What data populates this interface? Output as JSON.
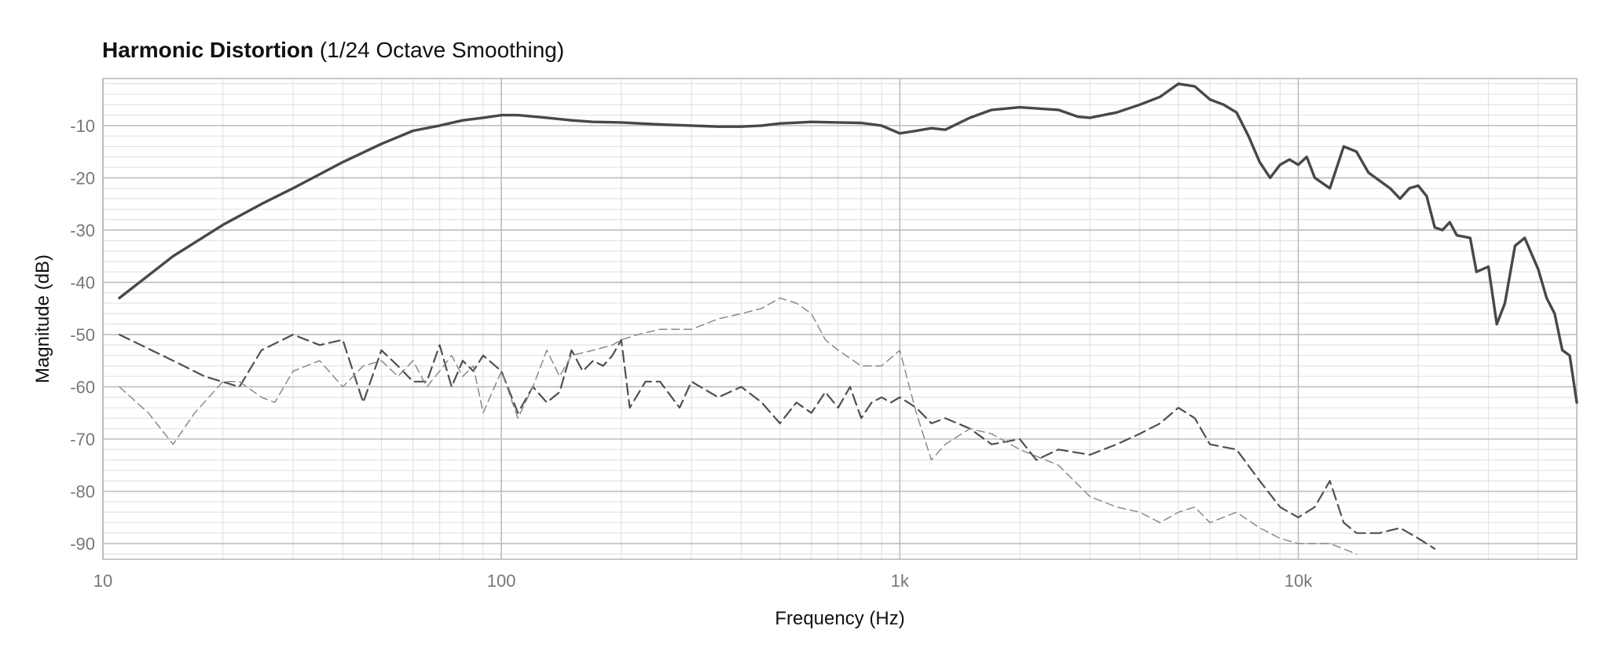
{
  "chart_data": {
    "type": "line",
    "title": "Harmonic Distortion",
    "subtitle": "(1/24 Octave Smoothing)",
    "xlabel": "Frequency (Hz)",
    "ylabel": "Magnitude (dB)",
    "x_scale": "log",
    "xlim": [
      10,
      50000
    ],
    "ylim": [
      -93,
      -1
    ],
    "x_ticks": [
      {
        "value": 10,
        "label": "10"
      },
      {
        "value": 100,
        "label": "100"
      },
      {
        "value": 1000,
        "label": "1k"
      },
      {
        "value": 10000,
        "label": "10k"
      }
    ],
    "y_ticks": [
      -10,
      -20,
      -30,
      -40,
      -50,
      -60,
      -70,
      -80,
      -90
    ],
    "grid": true,
    "legend": "none",
    "colors": {
      "grid_major": "#bdbdbd",
      "grid_minor": "#e3e3e3",
      "line_solid": "#484848",
      "line_dashed": "#505050",
      "line_dashed_light": "#8a8a8a"
    },
    "series": [
      {
        "style": "solid",
        "points": [
          [
            11,
            -43
          ],
          [
            15,
            -35
          ],
          [
            20,
            -29
          ],
          [
            25,
            -25
          ],
          [
            30,
            -22
          ],
          [
            40,
            -17
          ],
          [
            50,
            -13.5
          ],
          [
            60,
            -11
          ],
          [
            70,
            -10
          ],
          [
            80,
            -9
          ],
          [
            90,
            -8.5
          ],
          [
            100,
            -8
          ],
          [
            110,
            -8
          ],
          [
            130,
            -8.5
          ],
          [
            150,
            -9
          ],
          [
            170,
            -9.3
          ],
          [
            200,
            -9.4
          ],
          [
            250,
            -9.8
          ],
          [
            300,
            -10
          ],
          [
            350,
            -10.2
          ],
          [
            400,
            -10.2
          ],
          [
            450,
            -10
          ],
          [
            500,
            -9.6
          ],
          [
            600,
            -9.3
          ],
          [
            700,
            -9.4
          ],
          [
            800,
            -9.5
          ],
          [
            900,
            -10
          ],
          [
            1000,
            -11.5
          ],
          [
            1100,
            -11
          ],
          [
            1200,
            -10.5
          ],
          [
            1300,
            -10.8
          ],
          [
            1500,
            -8.5
          ],
          [
            1700,
            -7
          ],
          [
            2000,
            -6.5
          ],
          [
            2500,
            -7
          ],
          [
            2800,
            -8.3
          ],
          [
            3000,
            -8.5
          ],
          [
            3500,
            -7.5
          ],
          [
            4000,
            -6
          ],
          [
            4500,
            -4.5
          ],
          [
            5000,
            -2
          ],
          [
            5500,
            -2.5
          ],
          [
            6000,
            -5
          ],
          [
            6500,
            -6
          ],
          [
            7000,
            -7.5
          ],
          [
            7500,
            -12
          ],
          [
            8000,
            -17
          ],
          [
            8500,
            -20
          ],
          [
            9000,
            -17.5
          ],
          [
            9500,
            -16.5
          ],
          [
            10000,
            -17.5
          ],
          [
            10500,
            -16
          ],
          [
            11000,
            -20
          ],
          [
            12000,
            -22
          ],
          [
            13000,
            -14
          ],
          [
            14000,
            -15
          ],
          [
            15000,
            -19
          ],
          [
            17000,
            -22
          ],
          [
            18000,
            -24
          ],
          [
            19000,
            -22
          ],
          [
            20000,
            -21.5
          ],
          [
            21000,
            -23.5
          ],
          [
            22000,
            -29.5
          ],
          [
            23000,
            -30
          ],
          [
            24000,
            -28.5
          ],
          [
            25000,
            -31
          ],
          [
            27000,
            -31.5
          ],
          [
            28000,
            -38
          ],
          [
            30000,
            -37
          ],
          [
            31500,
            -48
          ],
          [
            33000,
            -44
          ],
          [
            35000,
            -33
          ],
          [
            37000,
            -31.5
          ],
          [
            40000,
            -37.5
          ],
          [
            42000,
            -43
          ],
          [
            44000,
            -46
          ],
          [
            46000,
            -53
          ],
          [
            48000,
            -54
          ],
          [
            50000,
            -63
          ]
        ]
      },
      {
        "style": "dashed",
        "points": [
          [
            11,
            -50
          ],
          [
            15,
            -55
          ],
          [
            18,
            -58
          ],
          [
            22,
            -60
          ],
          [
            25,
            -53
          ],
          [
            30,
            -50
          ],
          [
            35,
            -52
          ],
          [
            40,
            -51
          ],
          [
            45,
            -63
          ],
          [
            50,
            -53
          ],
          [
            55,
            -56
          ],
          [
            60,
            -59
          ],
          [
            65,
            -59
          ],
          [
            70,
            -52
          ],
          [
            75,
            -60
          ],
          [
            80,
            -55
          ],
          [
            85,
            -57
          ],
          [
            90,
            -54
          ],
          [
            100,
            -57
          ],
          [
            110,
            -65
          ],
          [
            120,
            -60
          ],
          [
            130,
            -63
          ],
          [
            140,
            -61
          ],
          [
            150,
            -53
          ],
          [
            160,
            -57
          ],
          [
            170,
            -55
          ],
          [
            180,
            -56
          ],
          [
            190,
            -54
          ],
          [
            200,
            -51
          ],
          [
            210,
            -64
          ],
          [
            230,
            -59
          ],
          [
            250,
            -59
          ],
          [
            280,
            -64
          ],
          [
            300,
            -59
          ],
          [
            350,
            -62
          ],
          [
            400,
            -60
          ],
          [
            450,
            -63
          ],
          [
            500,
            -67
          ],
          [
            550,
            -63
          ],
          [
            600,
            -65
          ],
          [
            650,
            -61
          ],
          [
            700,
            -64
          ],
          [
            750,
            -60
          ],
          [
            800,
            -66
          ],
          [
            850,
            -63
          ],
          [
            900,
            -62
          ],
          [
            950,
            -63
          ],
          [
            1000,
            -62
          ],
          [
            1100,
            -64
          ],
          [
            1200,
            -67
          ],
          [
            1300,
            -66
          ],
          [
            1500,
            -68
          ],
          [
            1700,
            -71
          ],
          [
            2000,
            -70
          ],
          [
            2200,
            -74
          ],
          [
            2500,
            -72
          ],
          [
            3000,
            -73
          ],
          [
            3500,
            -71
          ],
          [
            4000,
            -69
          ],
          [
            4500,
            -67
          ],
          [
            5000,
            -64
          ],
          [
            5500,
            -66
          ],
          [
            6000,
            -71
          ],
          [
            7000,
            -72
          ],
          [
            8000,
            -78
          ],
          [
            9000,
            -83
          ],
          [
            10000,
            -85
          ],
          [
            11000,
            -83
          ],
          [
            12000,
            -78
          ],
          [
            13000,
            -86
          ],
          [
            14000,
            -88
          ],
          [
            16000,
            -88
          ],
          [
            18000,
            -87
          ],
          [
            20000,
            -89
          ],
          [
            22000,
            -91
          ]
        ]
      },
      {
        "style": "dashed-light",
        "points": [
          [
            11,
            -60
          ],
          [
            13,
            -65
          ],
          [
            15,
            -71
          ],
          [
            17,
            -65
          ],
          [
            20,
            -59
          ],
          [
            22,
            -59
          ],
          [
            25,
            -62
          ],
          [
            27,
            -63
          ],
          [
            30,
            -57
          ],
          [
            35,
            -55
          ],
          [
            40,
            -60
          ],
          [
            45,
            -56
          ],
          [
            50,
            -55
          ],
          [
            55,
            -58
          ],
          [
            60,
            -55
          ],
          [
            65,
            -60
          ],
          [
            70,
            -57
          ],
          [
            75,
            -54
          ],
          [
            80,
            -58
          ],
          [
            85,
            -56
          ],
          [
            90,
            -65
          ],
          [
            100,
            -57
          ],
          [
            110,
            -66
          ],
          [
            120,
            -60
          ],
          [
            130,
            -53
          ],
          [
            140,
            -58
          ],
          [
            150,
            -54
          ],
          [
            170,
            -53
          ],
          [
            190,
            -52
          ],
          [
            200,
            -51
          ],
          [
            220,
            -50
          ],
          [
            250,
            -49
          ],
          [
            300,
            -49
          ],
          [
            350,
            -47
          ],
          [
            400,
            -46
          ],
          [
            450,
            -45
          ],
          [
            500,
            -43
          ],
          [
            550,
            -44
          ],
          [
            600,
            -46
          ],
          [
            650,
            -51
          ],
          [
            700,
            -53
          ],
          [
            800,
            -56
          ],
          [
            900,
            -56
          ],
          [
            1000,
            -53
          ],
          [
            1100,
            -65
          ],
          [
            1200,
            -74
          ],
          [
            1300,
            -71
          ],
          [
            1500,
            -68
          ],
          [
            1700,
            -69
          ],
          [
            2000,
            -72
          ],
          [
            2500,
            -75
          ],
          [
            3000,
            -81
          ],
          [
            3500,
            -83
          ],
          [
            4000,
            -84
          ],
          [
            4500,
            -86
          ],
          [
            5000,
            -84
          ],
          [
            5500,
            -83
          ],
          [
            6000,
            -86
          ],
          [
            7000,
            -84
          ],
          [
            8000,
            -87
          ],
          [
            9000,
            -89
          ],
          [
            10000,
            -90
          ],
          [
            12000,
            -90
          ],
          [
            14000,
            -92
          ]
        ]
      }
    ]
  }
}
